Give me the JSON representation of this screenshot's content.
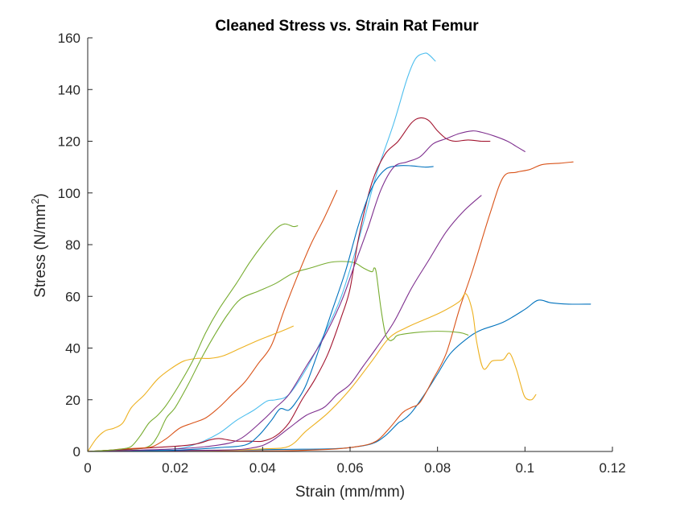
{
  "chart_data": {
    "type": "line",
    "title": "Cleaned Stress vs. Strain Rat Femur",
    "xlabel": "Strain (mm/mm)",
    "ylabel_main": "Stress (N/mm",
    "ylabel_sup": "2",
    "ylabel_close": ")",
    "xlim": [
      0,
      0.12
    ],
    "ylim": [
      0,
      160
    ],
    "xticks": [
      0,
      0.02,
      0.04,
      0.06,
      0.08,
      0.1,
      0.12
    ],
    "xtick_labels": [
      "0",
      "0.02",
      "0.04",
      "0.06",
      "0.08",
      "0.1",
      "0.12"
    ],
    "yticks": [
      0,
      20,
      40,
      60,
      80,
      100,
      120,
      140,
      160
    ],
    "ytick_labels": [
      "0",
      "20",
      "40",
      "60",
      "80",
      "100",
      "120",
      "140",
      "160"
    ],
    "grid": false,
    "series": [
      {
        "color": "#0072BD",
        "points": [
          [
            0,
            0
          ],
          [
            0.03,
            0.5
          ],
          [
            0.045,
            0.8
          ],
          [
            0.055,
            1
          ],
          [
            0.06,
            1.5
          ],
          [
            0.065,
            3
          ],
          [
            0.068,
            6
          ],
          [
            0.071,
            11
          ],
          [
            0.072,
            12
          ],
          [
            0.074,
            15
          ],
          [
            0.077,
            22
          ],
          [
            0.08,
            30
          ],
          [
            0.083,
            38
          ],
          [
            0.087,
            44
          ],
          [
            0.09,
            47
          ],
          [
            0.095,
            50
          ],
          [
            0.1,
            55
          ],
          [
            0.103,
            58.5
          ],
          [
            0.106,
            57.5
          ],
          [
            0.11,
            57
          ],
          [
            0.115,
            57
          ]
        ]
      },
      {
        "color": "#D95319",
        "points": [
          [
            0,
            0
          ],
          [
            0.04,
            0.2
          ],
          [
            0.055,
            0.8
          ],
          [
            0.062,
            2
          ],
          [
            0.066,
            4
          ],
          [
            0.069,
            9
          ],
          [
            0.072,
            15
          ],
          [
            0.074,
            17
          ],
          [
            0.076,
            19
          ],
          [
            0.079,
            28
          ],
          [
            0.082,
            38
          ],
          [
            0.085,
            55
          ],
          [
            0.088,
            70
          ],
          [
            0.092,
            92
          ],
          [
            0.095,
            106
          ],
          [
            0.098,
            108
          ],
          [
            0.101,
            109
          ],
          [
            0.104,
            111
          ],
          [
            0.108,
            111.5
          ],
          [
            0.111,
            112
          ]
        ]
      },
      {
        "color": "#EDB120",
        "points": [
          [
            0,
            0
          ],
          [
            0.03,
            0.5
          ],
          [
            0.04,
            1
          ],
          [
            0.046,
            2
          ],
          [
            0.05,
            8
          ],
          [
            0.055,
            15
          ],
          [
            0.06,
            24
          ],
          [
            0.065,
            35
          ],
          [
            0.069,
            44
          ],
          [
            0.073,
            48
          ],
          [
            0.077,
            51
          ],
          [
            0.081,
            54
          ],
          [
            0.085,
            58
          ],
          [
            0.0865,
            61
          ],
          [
            0.088,
            54
          ],
          [
            0.089,
            42
          ],
          [
            0.0905,
            32
          ],
          [
            0.0925,
            35
          ],
          [
            0.095,
            35.5
          ],
          [
            0.0965,
            38
          ],
          [
            0.098,
            32
          ],
          [
            0.099,
            26
          ],
          [
            0.1,
            21
          ],
          [
            0.1015,
            20
          ],
          [
            0.1025,
            22
          ]
        ]
      },
      {
        "color": "#7E2F8E",
        "points": [
          [
            0,
            0
          ],
          [
            0.03,
            0.5
          ],
          [
            0.038,
            1.5
          ],
          [
            0.042,
            4
          ],
          [
            0.046,
            9
          ],
          [
            0.05,
            14
          ],
          [
            0.054,
            17
          ],
          [
            0.057,
            22
          ],
          [
            0.06,
            26
          ],
          [
            0.063,
            33
          ],
          [
            0.066,
            40
          ],
          [
            0.07,
            50
          ],
          [
            0.074,
            63
          ],
          [
            0.078,
            74
          ],
          [
            0.082,
            85
          ],
          [
            0.086,
            93
          ],
          [
            0.09,
            99
          ]
        ]
      },
      {
        "color": "#77AC30",
        "points": [
          [
            0,
            0
          ],
          [
            0.01,
            0.8
          ],
          [
            0.014,
            2
          ],
          [
            0.016,
            6
          ],
          [
            0.018,
            13
          ],
          [
            0.02,
            17
          ],
          [
            0.023,
            26
          ],
          [
            0.026,
            36
          ],
          [
            0.029,
            45
          ],
          [
            0.032,
            53
          ],
          [
            0.035,
            59
          ],
          [
            0.039,
            62
          ],
          [
            0.043,
            65
          ],
          [
            0.047,
            69
          ],
          [
            0.051,
            71
          ],
          [
            0.055,
            73
          ],
          [
            0.058,
            73.5
          ],
          [
            0.061,
            73
          ],
          [
            0.063,
            71
          ],
          [
            0.065,
            69.5
          ],
          [
            0.0655,
            71
          ],
          [
            0.066,
            69
          ],
          [
            0.067,
            56
          ],
          [
            0.068,
            46
          ],
          [
            0.069,
            43
          ],
          [
            0.07,
            43.5
          ],
          [
            0.071,
            45
          ],
          [
            0.075,
            46
          ],
          [
            0.08,
            46.5
          ],
          [
            0.085,
            46
          ],
          [
            0.087,
            45
          ]
        ]
      },
      {
        "color": "#4DBEEE",
        "points": [
          [
            0,
            0
          ],
          [
            0.01,
            0.3
          ],
          [
            0.02,
            1
          ],
          [
            0.025,
            3
          ],
          [
            0.03,
            7
          ],
          [
            0.034,
            12
          ],
          [
            0.038,
            16
          ],
          [
            0.041,
            19.5
          ],
          [
            0.043,
            20
          ],
          [
            0.046,
            22
          ],
          [
            0.05,
            32
          ],
          [
            0.054,
            45
          ],
          [
            0.058,
            60
          ],
          [
            0.062,
            82
          ],
          [
            0.066,
            107
          ],
          [
            0.07,
            127
          ],
          [
            0.073,
            144
          ],
          [
            0.075,
            152
          ],
          [
            0.077,
            154
          ],
          [
            0.078,
            153.5
          ],
          [
            0.0795,
            151
          ]
        ]
      },
      {
        "color": "#A2142F",
        "points": [
          [
            0,
            0
          ],
          [
            0.02,
            2
          ],
          [
            0.025,
            3
          ],
          [
            0.028,
            4.5
          ],
          [
            0.03,
            5
          ],
          [
            0.032,
            4.5
          ],
          [
            0.034,
            4
          ],
          [
            0.037,
            4
          ],
          [
            0.04,
            4
          ],
          [
            0.043,
            6
          ],
          [
            0.046,
            11
          ],
          [
            0.049,
            20
          ],
          [
            0.052,
            28
          ],
          [
            0.055,
            38
          ],
          [
            0.058,
            52
          ],
          [
            0.06,
            63
          ],
          [
            0.062,
            83
          ],
          [
            0.065,
            104
          ],
          [
            0.068,
            115
          ],
          [
            0.071,
            120
          ],
          [
            0.074,
            127
          ],
          [
            0.076,
            129
          ],
          [
            0.078,
            128
          ],
          [
            0.08,
            124
          ],
          [
            0.082,
            121
          ],
          [
            0.084,
            120
          ],
          [
            0.087,
            120.5
          ],
          [
            0.09,
            120
          ],
          [
            0.092,
            120
          ]
        ]
      },
      {
        "color": "#0072BD",
        "points": [
          [
            0,
            0
          ],
          [
            0.02,
            0.5
          ],
          [
            0.03,
            1.5
          ],
          [
            0.036,
            2.5
          ],
          [
            0.039,
            6
          ],
          [
            0.042,
            12
          ],
          [
            0.044,
            16.5
          ],
          [
            0.046,
            16
          ],
          [
            0.048,
            20
          ],
          [
            0.05,
            26
          ],
          [
            0.053,
            40
          ],
          [
            0.056,
            55
          ],
          [
            0.059,
            70
          ],
          [
            0.062,
            88
          ],
          [
            0.065,
            102
          ],
          [
            0.068,
            109
          ],
          [
            0.071,
            110.5
          ],
          [
            0.074,
            110.5
          ],
          [
            0.077,
            110
          ],
          [
            0.079,
            110.2
          ]
        ]
      },
      {
        "color": "#D95319",
        "points": [
          [
            0,
            0
          ],
          [
            0.005,
            0.5
          ],
          [
            0.008,
            1
          ],
          [
            0.012,
            1.3
          ],
          [
            0.015,
            2
          ],
          [
            0.018,
            5
          ],
          [
            0.021,
            9
          ],
          [
            0.024,
            11
          ],
          [
            0.027,
            13
          ],
          [
            0.03,
            17
          ],
          [
            0.033,
            22
          ],
          [
            0.036,
            27
          ],
          [
            0.039,
            34
          ],
          [
            0.042,
            41
          ],
          [
            0.045,
            55
          ],
          [
            0.048,
            68
          ],
          [
            0.051,
            80
          ],
          [
            0.054,
            90
          ],
          [
            0.057,
            101
          ]
        ]
      },
      {
        "color": "#EDB120",
        "points": [
          [
            0,
            0
          ],
          [
            0.002,
            5
          ],
          [
            0.004,
            8
          ],
          [
            0.006,
            9
          ],
          [
            0.008,
            11
          ],
          [
            0.01,
            17
          ],
          [
            0.013,
            22
          ],
          [
            0.016,
            28
          ],
          [
            0.019,
            32
          ],
          [
            0.022,
            35
          ],
          [
            0.025,
            36
          ],
          [
            0.028,
            36
          ],
          [
            0.031,
            37
          ],
          [
            0.035,
            40
          ],
          [
            0.039,
            43
          ],
          [
            0.042,
            45
          ],
          [
            0.045,
            47
          ],
          [
            0.047,
            48.5
          ]
        ]
      },
      {
        "color": "#7E2F8E",
        "points": [
          [
            0,
            0
          ],
          [
            0.02,
            1
          ],
          [
            0.03,
            2.5
          ],
          [
            0.035,
            5
          ],
          [
            0.04,
            12
          ],
          [
            0.043,
            17
          ],
          [
            0.046,
            22
          ],
          [
            0.05,
            33
          ],
          [
            0.054,
            44
          ],
          [
            0.058,
            58
          ],
          [
            0.061,
            72
          ],
          [
            0.064,
            86
          ],
          [
            0.067,
            101
          ],
          [
            0.07,
            110
          ],
          [
            0.073,
            112
          ],
          [
            0.076,
            114
          ],
          [
            0.079,
            119
          ],
          [
            0.082,
            121
          ],
          [
            0.085,
            123
          ],
          [
            0.088,
            124
          ],
          [
            0.09,
            123.5
          ],
          [
            0.093,
            122
          ],
          [
            0.096,
            120
          ],
          [
            0.098,
            118
          ],
          [
            0.1,
            116
          ]
        ]
      },
      {
        "color": "#77AC30",
        "points": [
          [
            0,
            0
          ],
          [
            0.005,
            0.5
          ],
          [
            0.008,
            1
          ],
          [
            0.01,
            2
          ],
          [
            0.012,
            6
          ],
          [
            0.014,
            11
          ],
          [
            0.016,
            14
          ],
          [
            0.018,
            18
          ],
          [
            0.021,
            26
          ],
          [
            0.024,
            35
          ],
          [
            0.027,
            46
          ],
          [
            0.03,
            55
          ],
          [
            0.034,
            65
          ],
          [
            0.037,
            73
          ],
          [
            0.04,
            80
          ],
          [
            0.043,
            86
          ],
          [
            0.045,
            88
          ],
          [
            0.047,
            87
          ],
          [
            0.048,
            87.3
          ]
        ]
      }
    ]
  }
}
